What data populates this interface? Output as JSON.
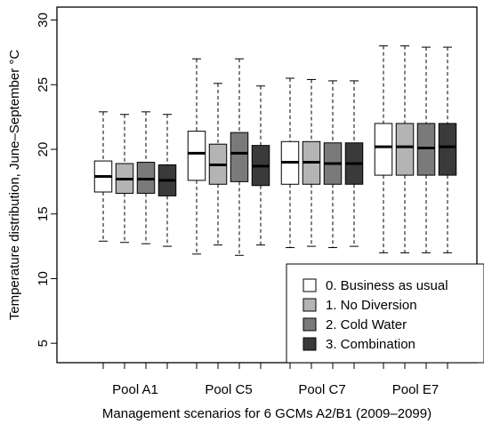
{
  "chart_data": {
    "type": "boxplot",
    "title": "",
    "xlabel": "Management scenarios for 6 GCMs A2/B1 (2009–2099)",
    "ylabel": "Temperature distribution, June–September °C",
    "ylim": [
      3.5,
      31
    ],
    "yticks": [
      5,
      10,
      15,
      20,
      25,
      30
    ],
    "grid": false,
    "legend_position": "bottom-right",
    "categories": [
      "Pool A1",
      "Pool C5",
      "Pool C7",
      "Pool E7"
    ],
    "series": [
      {
        "name": "0. Business as usual",
        "color": "#ffffff",
        "boxes": [
          {
            "min": 12.9,
            "q1": 16.7,
            "median": 17.9,
            "q3": 19.1,
            "max": 22.9
          },
          {
            "min": 11.9,
            "q1": 17.6,
            "median": 19.7,
            "q3": 21.4,
            "max": 27.0
          },
          {
            "min": 12.4,
            "q1": 17.3,
            "median": 19.0,
            "q3": 20.6,
            "max": 25.5
          },
          {
            "min": 12.0,
            "q1": 18.0,
            "median": 20.2,
            "q3": 22.0,
            "max": 28.0
          }
        ]
      },
      {
        "name": "1. No Diversion",
        "color": "#b4b4b4",
        "boxes": [
          {
            "min": 12.8,
            "q1": 16.6,
            "median": 17.7,
            "q3": 18.9,
            "max": 22.7
          },
          {
            "min": 12.6,
            "q1": 17.3,
            "median": 18.8,
            "q3": 20.4,
            "max": 25.1
          },
          {
            "min": 12.5,
            "q1": 17.3,
            "median": 19.0,
            "q3": 20.6,
            "max": 25.4
          },
          {
            "min": 12.0,
            "q1": 18.0,
            "median": 20.2,
            "q3": 22.0,
            "max": 28.0
          }
        ]
      },
      {
        "name": "2. Cold Water",
        "color": "#7a7a7a",
        "boxes": [
          {
            "min": 12.7,
            "q1": 16.6,
            "median": 17.7,
            "q3": 19.0,
            "max": 22.9
          },
          {
            "min": 11.8,
            "q1": 17.5,
            "median": 19.7,
            "q3": 21.3,
            "max": 27.0
          },
          {
            "min": 12.4,
            "q1": 17.3,
            "median": 18.9,
            "q3": 20.5,
            "max": 25.3
          },
          {
            "min": 12.0,
            "q1": 18.0,
            "median": 20.1,
            "q3": 22.0,
            "max": 27.9
          }
        ]
      },
      {
        "name": "3. Combination",
        "color": "#3a3a3a",
        "boxes": [
          {
            "min": 12.5,
            "q1": 16.4,
            "median": 17.6,
            "q3": 18.8,
            "max": 22.7
          },
          {
            "min": 12.6,
            "q1": 17.2,
            "median": 18.7,
            "q3": 20.3,
            "max": 24.9
          },
          {
            "min": 12.5,
            "q1": 17.3,
            "median": 18.9,
            "q3": 20.5,
            "max": 25.3
          },
          {
            "min": 12.0,
            "q1": 18.0,
            "median": 20.2,
            "q3": 22.0,
            "max": 27.9
          }
        ]
      }
    ]
  }
}
